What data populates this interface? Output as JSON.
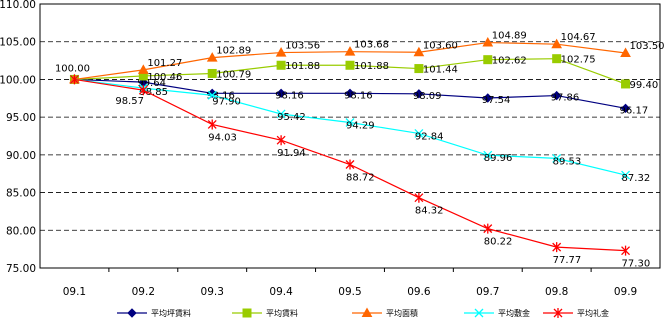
{
  "chart_data": {
    "type": "line",
    "categories": [
      "09.1",
      "09.2",
      "09.3",
      "09.4",
      "09.5",
      "09.6",
      "09.7",
      "09.8",
      "09.9"
    ],
    "ylim": [
      75,
      110
    ],
    "yticks": [
      "75.00",
      "80.00",
      "85.00",
      "90.00",
      "95.00",
      "100.00",
      "105.00",
      "110.00"
    ],
    "grid": "horizontal-dashed",
    "legend_position": "bottom",
    "series": [
      {
        "name": "平均坪賃料",
        "color": "#000080",
        "marker": "diamond",
        "values": [
          100.0,
          99.64,
          98.16,
          98.16,
          98.16,
          98.09,
          97.54,
          97.86,
          96.17
        ],
        "labels": [
          "",
          "99.64",
          "98.16",
          "98.16",
          "98.16",
          "98.09",
          "97.54",
          "97.86",
          "96.17"
        ]
      },
      {
        "name": "平均賃料",
        "color": "#99CC00",
        "marker": "square",
        "values": [
          100.0,
          100.46,
          100.79,
          101.88,
          101.88,
          101.44,
          102.62,
          102.75,
          99.4
        ],
        "labels": [
          "",
          "100.46",
          "100.79",
          "101.88",
          "101.88",
          "101.44",
          "102.62",
          "102.75",
          "99.40"
        ]
      },
      {
        "name": "平均面積",
        "color": "#FF6600",
        "marker": "triangle",
        "values": [
          100.0,
          101.27,
          102.89,
          103.56,
          103.68,
          103.6,
          104.89,
          104.67,
          103.5
        ],
        "labels": [
          "100.00",
          "101.27",
          "102.89",
          "103.56",
          "103.68",
          "103.60",
          "104.89",
          "104.67",
          "103.50"
        ]
      },
      {
        "name": "平均敷金",
        "color": "#00FFFF",
        "marker": "x",
        "values": [
          100.0,
          98.85,
          97.9,
          95.42,
          94.29,
          92.84,
          89.96,
          89.53,
          87.32
        ],
        "labels": [
          "",
          "98.85",
          "97.90",
          "95.42",
          "94.29",
          "92.84",
          "89.96",
          "89.53",
          "87.32"
        ]
      },
      {
        "name": "平均礼金",
        "color": "#FF0000",
        "marker": "star",
        "values": [
          100.0,
          98.57,
          94.03,
          91.94,
          88.72,
          84.32,
          80.22,
          77.77,
          77.3
        ],
        "labels": [
          "",
          "98.57",
          "94.03",
          "91.94",
          "88.72",
          "84.32",
          "80.22",
          "77.77",
          "77.30"
        ]
      }
    ]
  }
}
